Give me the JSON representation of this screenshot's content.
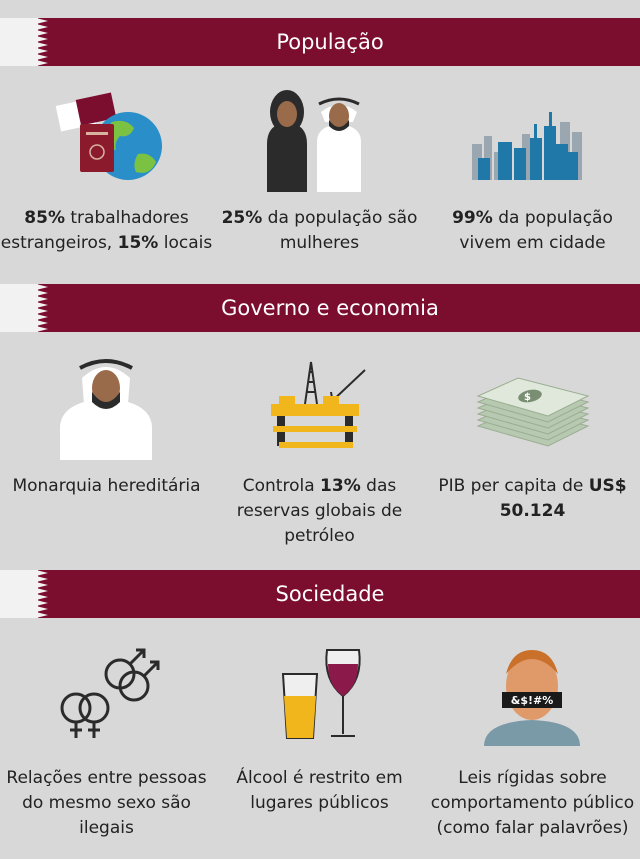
{
  "sections": [
    {
      "title": "População",
      "items": [
        {
          "icon": "globe-passport-icon",
          "bold1": "85%",
          "text1": " trabalhadores estrangeiros, ",
          "bold2": "15%",
          "text2": " locais"
        },
        {
          "icon": "people-icon",
          "bold1": "25%",
          "text1": " da população são mulheres",
          "bold2": "",
          "text2": ""
        },
        {
          "icon": "city-skyline-icon",
          "bold1": "99%",
          "text1": " da população vivem em cidade",
          "bold2": "",
          "text2": ""
        }
      ]
    },
    {
      "title": "Governo e economia",
      "items": [
        {
          "icon": "monarch-icon",
          "bold1": "",
          "text1": "Monarquia hereditária",
          "bold2": "",
          "text2": ""
        },
        {
          "icon": "oil-rig-icon",
          "prefix": "Controla ",
          "bold1": "13%",
          "text1": " das reservas globais de petróleo",
          "bold2": "",
          "text2": ""
        },
        {
          "icon": "money-stack-icon",
          "text1": "PIB per capita de ",
          "bold1": "US$ 50.124",
          "bold2": "",
          "text2": ""
        }
      ]
    },
    {
      "title": "Sociedade",
      "items": [
        {
          "icon": "gender-symbols-icon",
          "text1": "Relações entre pessoas do mesmo sexo são ilegais"
        },
        {
          "icon": "alcohol-glasses-icon",
          "text1": "Álcool é restrito em lugares públicos"
        },
        {
          "icon": "censored-speech-icon",
          "text1": "Leis rígidas sobre comportamento público (como falar palavrões)",
          "censor_text": "&$!#%"
        }
      ]
    }
  ],
  "colors": {
    "banner": "#7b0d2e",
    "background": "#d8d8d8",
    "accent_blue": "#1f78a8",
    "flag_white": "#f2f2f2"
  }
}
